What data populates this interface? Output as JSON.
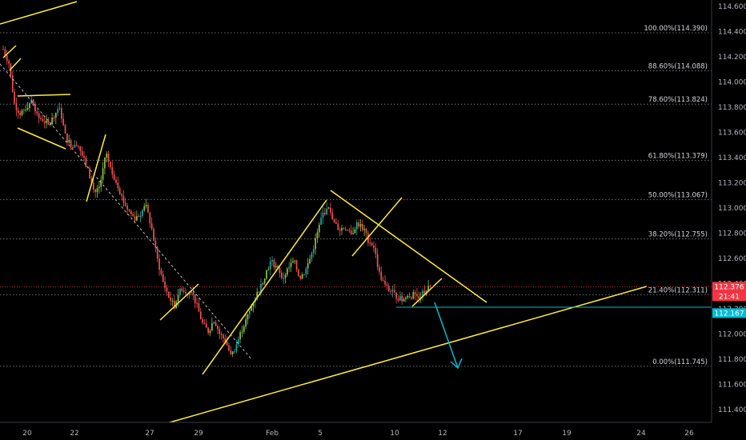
{
  "chart_data": {
    "type": "candlestick",
    "ylim": [
      111.3,
      114.65
    ],
    "x_ticks": [
      "20",
      "22",
      "27",
      "29",
      "Feb",
      "5",
      "10",
      "12",
      "17",
      "19",
      "24",
      "26"
    ],
    "y_ticks": [
      "114.600",
      "114.400",
      "114.200",
      "114.000",
      "113.800",
      "113.600",
      "113.400",
      "113.200",
      "113.000",
      "112.800",
      "112.600",
      "112.400",
      "112.200",
      "112.000",
      "111.800",
      "111.600",
      "111.400"
    ],
    "y_tick_values": [
      114.6,
      114.4,
      114.2,
      114.0,
      113.8,
      113.6,
      113.4,
      113.2,
      113.0,
      112.8,
      112.6,
      112.4,
      112.2,
      112.0,
      111.8,
      111.6,
      111.4
    ],
    "fib_levels": [
      {
        "label": "100.00%(114.390)",
        "value": 114.39
      },
      {
        "label": "88.60%(114.088)",
        "value": 114.088
      },
      {
        "label": "78.60%(113.824)",
        "value": 113.824
      },
      {
        "label": "61.80%(113.379)",
        "value": 113.379
      },
      {
        "label": "50.00%(113.067)",
        "value": 113.067
      },
      {
        "label": "38.20%(112.755)",
        "value": 112.755
      },
      {
        "label": "21.40%(112.311)",
        "value": 112.311
      },
      {
        "label": "0.00%(111.745)",
        "value": 111.745
      }
    ],
    "price_tags": [
      {
        "label": "112.376",
        "value": 112.376,
        "color": "#f23645"
      },
      {
        "label": "21:41",
        "value": 112.3,
        "color": "#f23645"
      },
      {
        "label": "112.167",
        "value": 112.167,
        "color": "#00bcd4"
      }
    ],
    "price_path": [
      114.26,
      114.15,
      113.82,
      113.75,
      113.8,
      113.85,
      113.72,
      113.7,
      113.65,
      113.75,
      113.78,
      113.55,
      113.5,
      113.52,
      113.4,
      113.28,
      113.12,
      113.18,
      113.45,
      113.28,
      113.2,
      113.06,
      112.98,
      112.92,
      112.95,
      113.02,
      112.85,
      112.6,
      112.42,
      112.3,
      112.22,
      112.36,
      112.32,
      112.35,
      112.22,
      112.08,
      112.02,
      112.12,
      112.0,
      111.95,
      111.82,
      111.93,
      112.05,
      112.15,
      112.28,
      112.36,
      112.48,
      112.58,
      112.52,
      112.44,
      112.52,
      112.58,
      112.45,
      112.5,
      112.62,
      112.78,
      112.95,
      113.0,
      112.88,
      112.83,
      112.85,
      112.78,
      112.88,
      112.85,
      112.75,
      112.7,
      112.48,
      112.38,
      112.34,
      112.3,
      112.27,
      112.3,
      112.31,
      112.3,
      112.34,
      112.376
    ],
    "colors": {
      "up": "#26a69a",
      "down": "#ef5350",
      "bull": "#8bc34a",
      "drawing": "#ffeb3b",
      "projection": "#00bcd4",
      "fib": "#888888"
    }
  }
}
